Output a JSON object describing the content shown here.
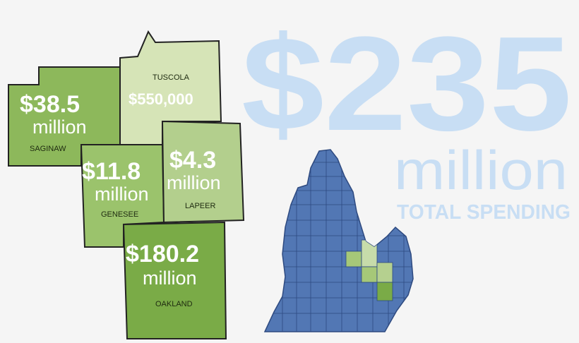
{
  "counties": [
    {
      "name": "SAGINAW",
      "amount": "$38.5",
      "unit": "million"
    },
    {
      "name": "TUSCOLA",
      "amount": "$550,000"
    },
    {
      "name": "GENESEE",
      "amount": "$11.8",
      "unit": "million"
    },
    {
      "name": "LAPEER",
      "amount": "$4.3",
      "unit": "million"
    },
    {
      "name": "OAKLAND",
      "amount": "$180.2",
      "unit": "million"
    }
  ],
  "total": {
    "amount": "$235",
    "unit": "million",
    "label": "TOTAL SPENDING"
  }
}
